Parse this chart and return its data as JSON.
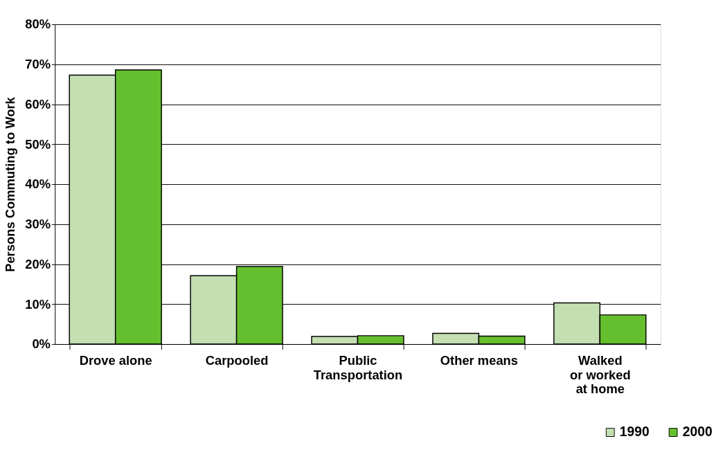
{
  "chart_data": {
    "type": "bar",
    "ylabel": "Persons Commuting to Work",
    "categories": [
      "Drove alone",
      "Carpooled",
      "Public\nTransportation",
      "Other means",
      "Walked\nor worked\nat home"
    ],
    "series": [
      {
        "name": "1990",
        "color": "#c4dfb2",
        "values": [
          67.3,
          17.1,
          1.9,
          2.7,
          10.3
        ]
      },
      {
        "name": "2000",
        "color": "#66bf2e",
        "values": [
          68.6,
          19.4,
          2.1,
          2.0,
          7.3
        ]
      }
    ],
    "ylim": [
      0,
      80
    ],
    "yticks": [
      {
        "value": 0,
        "label": "0%"
      },
      {
        "value": 10,
        "label": "10%"
      },
      {
        "value": 20,
        "label": "20%"
      },
      {
        "value": 30,
        "label": "30%"
      },
      {
        "value": 40,
        "label": "40%"
      },
      {
        "value": 50,
        "label": "50%"
      },
      {
        "value": 60,
        "label": "60%"
      },
      {
        "value": 70,
        "label": "70%"
      },
      {
        "value": 80,
        "label": "80%"
      }
    ],
    "grid": "y",
    "legend": "bottom right"
  }
}
